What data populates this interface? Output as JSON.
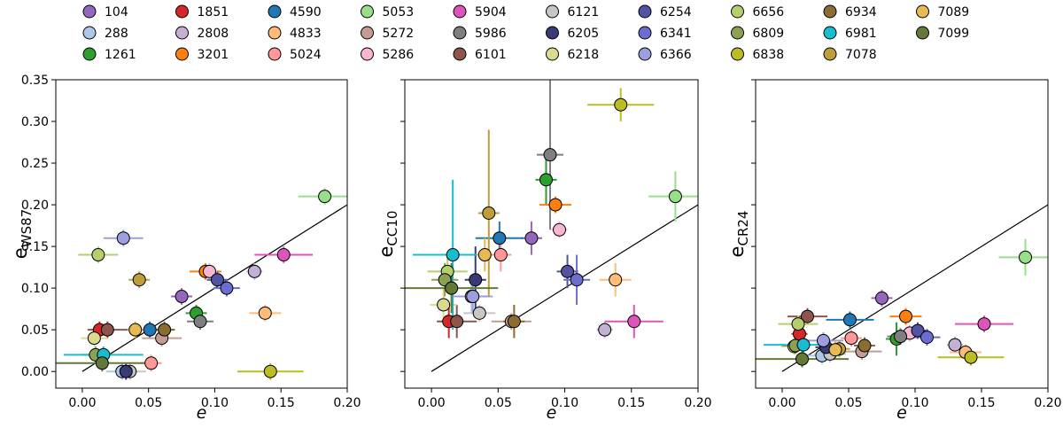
{
  "chart_data": {
    "type": "scatter",
    "xlabel": "e",
    "xlim": [
      -0.02,
      0.2
    ],
    "xticks": [
      {
        "value": 0,
        "label": "0.00"
      },
      {
        "value": 0.05,
        "label": "0.05"
      },
      {
        "value": 0.1,
        "label": "0.10"
      },
      {
        "value": 0.15,
        "label": "0.15"
      },
      {
        "value": 0.2,
        "label": "0.20"
      }
    ],
    "ylim": [
      -0.02,
      0.35
    ],
    "yticks": [
      {
        "value": 0,
        "label": "0.00"
      },
      {
        "value": 0.05,
        "label": "0.05"
      },
      {
        "value": 0.1,
        "label": "0.10"
      },
      {
        "value": 0.15,
        "label": "0.15"
      },
      {
        "value": 0.2,
        "label": "0.20"
      },
      {
        "value": 0.25,
        "label": "0.25"
      },
      {
        "value": 0.3,
        "label": "0.30"
      },
      {
        "value": 0.35,
        "label": "0.35"
      }
    ],
    "identity_line": true,
    "panels": [
      {
        "ylabel": "e",
        "ylabel_sub": "WS87"
      },
      {
        "ylabel": "e",
        "ylabel_sub": "CC10"
      },
      {
        "ylabel": "e",
        "ylabel_sub": "CR24"
      }
    ],
    "series": [
      {
        "name": "104",
        "color": "#9467bd",
        "x": 0.075,
        "x_err": 0.008,
        "values": [
          0.09,
          0.16,
          0.088
        ],
        "errors": [
          0.01,
          0.02,
          0.01
        ]
      },
      {
        "name": "288",
        "color": "#aec7e8",
        "x": 0.03,
        "x_err": 0.012,
        "values": [
          0.0,
          0.09,
          0.019
        ],
        "errors": [
          0.01,
          0.02,
          0.01
        ]
      },
      {
        "name": "1261",
        "color": "#2ca02c",
        "x": 0.086,
        "x_err": 0.008,
        "values": [
          0.07,
          0.23,
          0.039
        ],
        "errors": [
          0.01,
          0.03,
          0.02
        ]
      },
      {
        "name": "1851",
        "color": "#d62728",
        "x": 0.013,
        "x_err": 0.006,
        "values": [
          0.05,
          0.06,
          0.045
        ],
        "errors": [
          0.01,
          0.02,
          0.01
        ]
      },
      {
        "name": "2808",
        "color": "#c5b0d5",
        "x": 0.13,
        "x_err": 0.006,
        "values": [
          0.12,
          0.05,
          0.032
        ],
        "errors": [
          0.01,
          0.01,
          0.01
        ]
      },
      {
        "name": "3201",
        "color": "#ff7f0e",
        "x": 0.093,
        "x_err": 0.012,
        "values": [
          0.12,
          0.2,
          0.066
        ],
        "errors": [
          0.01,
          0.01,
          0.01
        ]
      },
      {
        "name": "4590",
        "color": "#1f77b4",
        "x": 0.051,
        "x_err": 0.018,
        "values": [
          0.05,
          0.16,
          0.062
        ],
        "errors": [
          0.01,
          0.02,
          0.01
        ]
      },
      {
        "name": "4833",
        "color": "#ffbb78",
        "x": 0.138,
        "x_err": 0.012,
        "values": [
          0.07,
          0.11,
          0.023
        ],
        "errors": [
          0.01,
          0.02,
          0.01
        ]
      },
      {
        "name": "5024",
        "color": "#ff9896",
        "x": 0.052,
        "x_err": 0.008,
        "values": [
          0.01,
          0.14,
          0.04
        ],
        "errors": [
          0.01,
          0.02,
          0.01
        ]
      },
      {
        "name": "5053",
        "color": "#98df8a",
        "x": 0.183,
        "x_err": 0.02,
        "values": [
          0.21,
          0.21,
          0.137
        ],
        "errors": [
          0.01,
          0.03,
          0.022
        ]
      },
      {
        "name": "5272",
        "color": "#c49c94",
        "x": 0.06,
        "x_err": 0.015,
        "values": [
          0.04,
          0.06,
          0.024
        ],
        "errors": [
          0.01,
          0.01,
          0.01
        ]
      },
      {
        "name": "5286",
        "color": "#f7b6d2",
        "x": 0.096,
        "x_err": 0.006,
        "values": [
          0.12,
          0.17,
          0.046
        ],
        "errors": [
          0.01,
          0.01,
          0.01
        ]
      },
      {
        "name": "5904",
        "color": "#dd55bb",
        "x": 0.152,
        "x_err": 0.022,
        "values": [
          0.14,
          0.06,
          0.057
        ],
        "errors": [
          0.01,
          0.02,
          0.01
        ]
      },
      {
        "name": "5986",
        "color": "#7f7f7f",
        "x": 0.089,
        "x_err": 0.01,
        "values": [
          0.06,
          0.26,
          0.042
        ],
        "errors": [
          0.01,
          0.09,
          0.01
        ]
      },
      {
        "name": "6101",
        "color": "#8c564b",
        "x": 0.019,
        "x_err": 0.015,
        "values": [
          0.05,
          0.06,
          0.066
        ],
        "errors": [
          0.01,
          0.02,
          0.01
        ]
      },
      {
        "name": "6121",
        "color": "#c7c7c7",
        "x": 0.036,
        "x_err": 0.012,
        "values": [
          0.0,
          0.07,
          0.021
        ],
        "errors": [
          0.01,
          0.01,
          0.01
        ]
      },
      {
        "name": "6205",
        "color": "#393b79",
        "x": 0.033,
        "x_err": 0.008,
        "values": [
          0.0,
          0.11,
          0.029
        ],
        "errors": [
          0.01,
          0.04,
          0.01
        ]
      },
      {
        "name": "6218",
        "color": "#dbdb8d",
        "x": 0.009,
        "x_err": 0.01,
        "values": [
          0.04,
          0.08,
          0.03
        ],
        "errors": [
          0.01,
          0.02,
          0.01
        ]
      },
      {
        "name": "6254",
        "color": "#5254a3",
        "x": 0.102,
        "x_err": 0.008,
        "values": [
          0.11,
          0.12,
          0.049
        ],
        "errors": [
          0.01,
          0.02,
          0.01
        ]
      },
      {
        "name": "6341",
        "color": "#6b6ecf",
        "x": 0.109,
        "x_err": 0.01,
        "values": [
          0.1,
          0.11,
          0.041
        ],
        "errors": [
          0.01,
          0.03,
          0.01
        ]
      },
      {
        "name": "6366",
        "color": "#9c9ede",
        "x": 0.031,
        "x_err": 0.015,
        "values": [
          0.16,
          0.09,
          0.037
        ],
        "errors": [
          0.01,
          0.02,
          0.01
        ]
      },
      {
        "name": "6656",
        "color": "#b5cf6b",
        "x": 0.012,
        "x_err": 0.015,
        "values": [
          0.14,
          0.12,
          0.057
        ],
        "errors": [
          0.01,
          0.02,
          0.01
        ]
      },
      {
        "name": "6809",
        "color": "#8ca252",
        "x": 0.01,
        "x_err": 0.01,
        "values": [
          0.02,
          0.11,
          0.031
        ],
        "errors": [
          0.01,
          0.02,
          0.01
        ]
      },
      {
        "name": "6838",
        "color": "#bcbd22",
        "x": 0.142,
        "x_err": 0.025,
        "values": [
          0.0,
          0.32,
          0.017
        ],
        "errors": [
          0.01,
          0.02,
          0.01
        ]
      },
      {
        "name": "6934",
        "color": "#8c6d31",
        "x": 0.062,
        "x_err": 0.008,
        "values": [
          0.05,
          0.06,
          0.031
        ],
        "errors": [
          0.01,
          0.02,
          0.01
        ]
      },
      {
        "name": "6981",
        "color": "#17becf",
        "x": 0.016,
        "x_err": 0.03,
        "values": [
          0.02,
          0.14,
          0.032
        ],
        "errors": [
          0.01,
          0.09,
          0.01
        ]
      },
      {
        "name": "7078",
        "color": "#bd9e39",
        "x": 0.043,
        "x_err": 0.008,
        "values": [
          0.11,
          0.19,
          0.027
        ],
        "errors": [
          0.01,
          0.1,
          0.01
        ]
      },
      {
        "name": "7089",
        "color": "#e7ba52",
        "x": 0.04,
        "x_err": 0.006,
        "values": [
          0.05,
          0.14,
          0.026
        ],
        "errors": [
          0.01,
          0.02,
          0.01
        ]
      },
      {
        "name": "7099",
        "color": "#637939",
        "x": 0.015,
        "x_err": 0.035,
        "values": [
          0.01,
          0.1,
          0.015
        ],
        "errors": [
          0.01,
          0.03,
          0.01
        ]
      }
    ]
  }
}
